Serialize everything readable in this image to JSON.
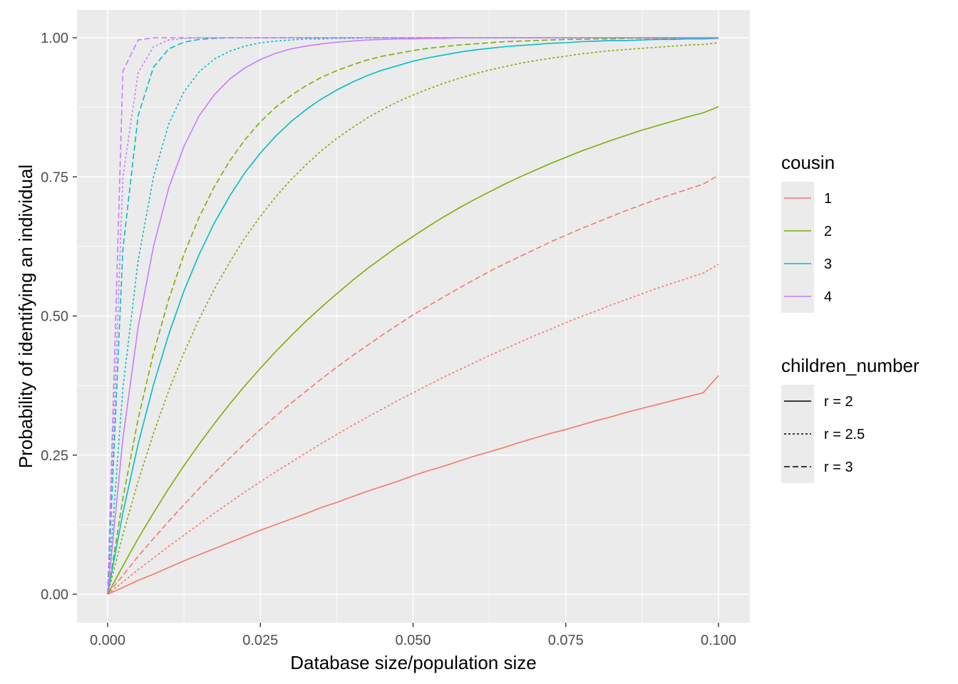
{
  "chart_data": {
    "type": "line",
    "xlabel": "Database size/population size",
    "ylabel": "Probability of identifying an individual",
    "xlim": [
      0,
      0.1
    ],
    "ylim": [
      0,
      1
    ],
    "x_ticks": [
      "0.000",
      "0.025",
      "0.050",
      "0.075",
      "0.100"
    ],
    "y_ticks": [
      "0.00",
      "0.25",
      "0.50",
      "0.75",
      "1.00"
    ],
    "grid": true,
    "legend_position": "right",
    "color_legend": {
      "title": "cousin",
      "entries": [
        {
          "label": "1",
          "color": "#F8766D"
        },
        {
          "label": "2",
          "color": "#7CAE00"
        },
        {
          "label": "3",
          "color": "#00BFC4"
        },
        {
          "label": "4",
          "color": "#C77CFF"
        }
      ]
    },
    "linetype_legend": {
      "title": "children_number",
      "entries": [
        {
          "label": "r = 2",
          "linetype": "solid"
        },
        {
          "label": "r = 2.5",
          "linetype": "dotted"
        },
        {
          "label": "r = 3",
          "linetype": "dashed"
        }
      ]
    },
    "x": [
      0,
      0.0025,
      0.005,
      0.0075,
      0.01,
      0.0125,
      0.015,
      0.0175,
      0.02,
      0.0225,
      0.025,
      0.0275,
      0.03,
      0.0325,
      0.035,
      0.0375,
      0.04,
      0.0425,
      0.045,
      0.0475,
      0.05,
      0.0525,
      0.055,
      0.0575,
      0.06,
      0.0625,
      0.065,
      0.0675,
      0.07,
      0.0725,
      0.075,
      0.0775,
      0.08,
      0.0825,
      0.085,
      0.0875,
      0.09,
      0.0925,
      0.095,
      0.0975,
      0.1
    ],
    "series": [
      {
        "cousin": "1",
        "linetype": "solid",
        "values": [
          0,
          0.012,
          0.025,
          0.036,
          0.048,
          0.06,
          0.071,
          0.082,
          0.093,
          0.104,
          0.115,
          0.125,
          0.135,
          0.145,
          0.156,
          0.165,
          0.175,
          0.185,
          0.194,
          0.203,
          0.213,
          0.222,
          0.23,
          0.239,
          0.248,
          0.256,
          0.264,
          0.273,
          0.281,
          0.289,
          0.296,
          0.304,
          0.312,
          0.319,
          0.327,
          0.334,
          0.341,
          0.348,
          0.355,
          0.362,
          0.393
        ]
      },
      {
        "cousin": "1",
        "linetype": "dotted",
        "values": [
          0,
          0.022,
          0.044,
          0.065,
          0.086,
          0.106,
          0.126,
          0.146,
          0.165,
          0.184,
          0.202,
          0.22,
          0.237,
          0.254,
          0.271,
          0.287,
          0.303,
          0.318,
          0.333,
          0.348,
          0.362,
          0.376,
          0.39,
          0.403,
          0.416,
          0.429,
          0.441,
          0.453,
          0.465,
          0.476,
          0.488,
          0.499,
          0.509,
          0.52,
          0.53,
          0.54,
          0.55,
          0.559,
          0.568,
          0.577,
          0.593
        ]
      },
      {
        "cousin": "1",
        "linetype": "dashed",
        "values": [
          0,
          0.034,
          0.068,
          0.1,
          0.131,
          0.161,
          0.19,
          0.218,
          0.245,
          0.271,
          0.296,
          0.32,
          0.343,
          0.365,
          0.387,
          0.408,
          0.428,
          0.447,
          0.466,
          0.484,
          0.502,
          0.518,
          0.534,
          0.55,
          0.565,
          0.58,
          0.594,
          0.607,
          0.62,
          0.633,
          0.645,
          0.657,
          0.668,
          0.679,
          0.69,
          0.7,
          0.71,
          0.719,
          0.728,
          0.737,
          0.753
        ]
      },
      {
        "cousin": "2",
        "linetype": "solid",
        "values": [
          0,
          0.051,
          0.1,
          0.146,
          0.19,
          0.231,
          0.27,
          0.307,
          0.342,
          0.375,
          0.406,
          0.436,
          0.464,
          0.491,
          0.516,
          0.54,
          0.563,
          0.585,
          0.605,
          0.625,
          0.643,
          0.661,
          0.678,
          0.694,
          0.709,
          0.723,
          0.737,
          0.75,
          0.762,
          0.774,
          0.785,
          0.796,
          0.806,
          0.816,
          0.825,
          0.834,
          0.842,
          0.85,
          0.858,
          0.865,
          0.876
        ]
      },
      {
        "cousin": "2",
        "linetype": "dotted",
        "values": [
          0,
          0.107,
          0.203,
          0.289,
          0.366,
          0.434,
          0.495,
          0.549,
          0.597,
          0.641,
          0.679,
          0.714,
          0.745,
          0.772,
          0.797,
          0.819,
          0.838,
          0.856,
          0.871,
          0.885,
          0.897,
          0.908,
          0.918,
          0.927,
          0.935,
          0.942,
          0.948,
          0.954,
          0.959,
          0.963,
          0.967,
          0.971,
          0.974,
          0.977,
          0.979,
          0.981,
          0.983,
          0.985,
          0.987,
          0.988,
          0.991
        ]
      },
      {
        "cousin": "2",
        "linetype": "dashed",
        "values": [
          0,
          0.172,
          0.315,
          0.433,
          0.53,
          0.611,
          0.678,
          0.733,
          0.779,
          0.817,
          0.849,
          0.875,
          0.896,
          0.914,
          0.929,
          0.941,
          0.951,
          0.96,
          0.967,
          0.972,
          0.977,
          0.981,
          0.984,
          0.987,
          0.989,
          0.991,
          0.993,
          0.994,
          0.995,
          0.996,
          0.997,
          0.997,
          0.998,
          0.998,
          0.999,
          0.999,
          0.999,
          0.999,
          0.999,
          1.0,
          1.0
        ]
      },
      {
        "cousin": "3",
        "linetype": "solid",
        "values": [
          0,
          0.146,
          0.27,
          0.376,
          0.467,
          0.545,
          0.611,
          0.668,
          0.716,
          0.758,
          0.793,
          0.823,
          0.849,
          0.871,
          0.89,
          0.906,
          0.92,
          0.932,
          0.942,
          0.95,
          0.958,
          0.964,
          0.969,
          0.974,
          0.978,
          0.981,
          0.984,
          0.986,
          0.988,
          0.99,
          0.991,
          0.993,
          0.994,
          0.995,
          0.995,
          0.996,
          0.997,
          0.997,
          0.998,
          0.998,
          0.999
        ]
      },
      {
        "cousin": "3",
        "linetype": "dotted",
        "values": [
          0,
          0.37,
          0.6,
          0.75,
          0.845,
          0.903,
          0.939,
          0.962,
          0.976,
          0.985,
          0.991,
          0.994,
          0.996,
          0.998,
          0.998,
          0.999,
          0.999,
          1.0,
          1.0,
          1.0,
          1.0,
          1.0,
          1.0,
          1.0,
          1.0,
          1.0,
          1.0,
          1.0,
          1.0,
          1.0,
          1.0,
          1.0,
          1.0,
          1.0,
          1.0,
          1.0,
          1.0,
          1.0,
          1.0,
          1.0,
          1.0
        ]
      },
      {
        "cousin": "3",
        "linetype": "dashed",
        "values": [
          0,
          0.62,
          0.86,
          0.947,
          0.98,
          0.992,
          0.997,
          0.999,
          1.0,
          1.0,
          1.0,
          1.0,
          1.0,
          1.0,
          1.0,
          1.0,
          1.0,
          1.0,
          1.0,
          1.0,
          1.0,
          1.0,
          1.0,
          1.0,
          1.0,
          1.0,
          1.0,
          1.0,
          1.0,
          1.0,
          1.0,
          1.0,
          1.0,
          1.0,
          1.0,
          1.0,
          1.0,
          1.0,
          1.0,
          1.0,
          1.0
        ]
      },
      {
        "cousin": "4",
        "linetype": "solid",
        "values": [
          0,
          0.28,
          0.48,
          0.625,
          0.73,
          0.805,
          0.86,
          0.898,
          0.926,
          0.946,
          0.961,
          0.972,
          0.98,
          0.985,
          0.989,
          0.992,
          0.994,
          0.996,
          0.997,
          0.998,
          0.998,
          0.999,
          0.999,
          1.0,
          1.0,
          1.0,
          1.0,
          1.0,
          1.0,
          1.0,
          1.0,
          1.0,
          1.0,
          1.0,
          1.0,
          1.0,
          1.0,
          1.0,
          1.0,
          1.0,
          1.0
        ]
      },
      {
        "cousin": "4",
        "linetype": "dotted",
        "values": [
          0,
          0.75,
          0.937,
          0.984,
          0.996,
          0.999,
          1.0,
          1.0,
          1.0,
          1.0,
          1.0,
          1.0,
          1.0,
          1.0,
          1.0,
          1.0,
          1.0,
          1.0,
          1.0,
          1.0,
          1.0,
          1.0,
          1.0,
          1.0,
          1.0,
          1.0,
          1.0,
          1.0,
          1.0,
          1.0,
          1.0,
          1.0,
          1.0,
          1.0,
          1.0,
          1.0,
          1.0,
          1.0,
          1.0,
          1.0,
          1.0
        ]
      },
      {
        "cousin": "4",
        "linetype": "dashed",
        "values": [
          0,
          0.94,
          0.996,
          1.0,
          1.0,
          1.0,
          1.0,
          1.0,
          1.0,
          1.0,
          1.0,
          1.0,
          1.0,
          1.0,
          1.0,
          1.0,
          1.0,
          1.0,
          1.0,
          1.0,
          1.0,
          1.0,
          1.0,
          1.0,
          1.0,
          1.0,
          1.0,
          1.0,
          1.0,
          1.0,
          1.0,
          1.0,
          1.0,
          1.0,
          1.0,
          1.0,
          1.0,
          1.0,
          1.0,
          1.0,
          1.0
        ]
      }
    ]
  }
}
